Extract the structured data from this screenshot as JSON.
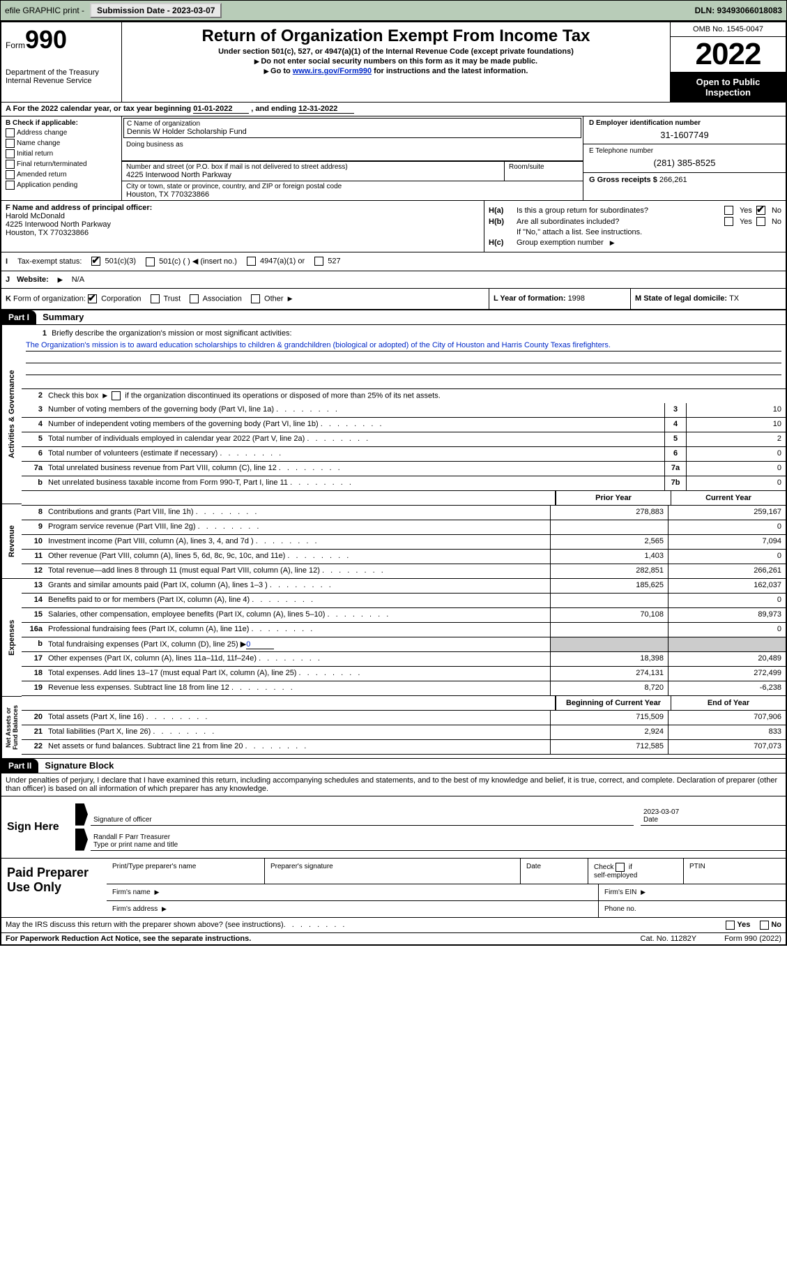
{
  "top_bar": {
    "efile": "efile GRAPHIC print -",
    "sub_btn": "Submission Date - 2023-03-07",
    "dln": "DLN: 93493066018083"
  },
  "header": {
    "form_label": "Form",
    "form_num": "990",
    "dept": "Department of the Treasury",
    "irs": "Internal Revenue Service",
    "title": "Return of Organization Exempt From Income Tax",
    "subtitle": "Under section 501(c), 527, or 4947(a)(1) of the Internal Revenue Code (except private foundations)",
    "note1": "Do not enter social security numbers on this form as it may be made public.",
    "note2_pre": "Go to ",
    "note2_link": "www.irs.gov/Form990",
    "note2_post": " for instructions and the latest information.",
    "omb": "OMB No. 1545-0047",
    "year": "2022",
    "inspection": "Open to Public Inspection"
  },
  "line_a": {
    "text_pre": "A For the 2022 calendar year, or tax year beginning ",
    "begin": "01-01-2022",
    "mid": "  , and ending ",
    "end": "12-31-2022"
  },
  "section_b": {
    "label": "B Check if applicable:",
    "items": [
      "Address change",
      "Name change",
      "Initial return",
      "Final return/terminated",
      "Amended return",
      "Application pending"
    ]
  },
  "section_c": {
    "name_label": "C Name of organization",
    "name": "Dennis W Holder Scholarship Fund",
    "dba_label": "Doing business as",
    "street_label": "Number and street (or P.O. box if mail is not delivered to street address)",
    "room_label": "Room/suite",
    "street": "4225 Interwood North Parkway",
    "city_label": "City or town, state or province, country, and ZIP or foreign postal code",
    "city": "Houston, TX  770323866"
  },
  "section_de": {
    "d_label": "D Employer identification number",
    "d_val": "31-1607749",
    "e_label": "E Telephone number",
    "e_val": "(281) 385-8525",
    "g_label": "G Gross receipts $ ",
    "g_val": "266,261"
  },
  "section_f": {
    "label": "F Name and address of principal officer:",
    "name": "Harold McDonald",
    "addr1": "4225 Interwood North Parkway",
    "addr2": "Houston, TX  770323866"
  },
  "section_h": {
    "ha_label": "H(a)",
    "ha_text": "Is this a group return for subordinates?",
    "ha_no_checked": true,
    "hb_label": "H(b)",
    "hb_text": "Are all subordinates included?",
    "hb_note": "If \"No,\" attach a list. See instructions.",
    "hc_label": "H(c)",
    "hc_text": "Group exemption number"
  },
  "status_row": {
    "i_label": "I",
    "tax_exempt": "Tax-exempt status:",
    "opt1": "501(c)(3)",
    "opt2": "501(c) (  )",
    "opt2_note": "(insert no.)",
    "opt3": "4947(a)(1) or",
    "opt4": "527"
  },
  "website_row": {
    "j_label": "J",
    "label": "Website:",
    "val": "N/A"
  },
  "k_row": {
    "k_label": "K",
    "text": "Form of organization:",
    "opts": [
      "Corporation",
      "Trust",
      "Association",
      "Other"
    ],
    "l_label": "L Year of formation: ",
    "l_val": "1998",
    "m_label": "M State of legal domicile: ",
    "m_val": "TX"
  },
  "part1": {
    "header": "Part I",
    "title": "Summary",
    "vert_labels": [
      "Activities & Governance",
      "Revenue",
      "Expenses",
      "Net Assets or Fund Balances"
    ],
    "line1_label": "1",
    "line1_text": "Briefly describe the organization's mission or most significant activities:",
    "mission": "The Organization's mission is to award education scholarships to children & grandchildren (biological or adopted) of the City of Houston and Harris County Texas firefighters.",
    "line2_label": "2",
    "line2_text": "Check this box",
    "line2_post": "if the organization discontinued its operations or disposed of more than 25% of its net assets.",
    "rows_gov": [
      {
        "n": "3",
        "d": "Number of voting members of the governing body (Part VI, line 1a)",
        "b": "3",
        "v": "10"
      },
      {
        "n": "4",
        "d": "Number of independent voting members of the governing body (Part VI, line 1b)",
        "b": "4",
        "v": "10"
      },
      {
        "n": "5",
        "d": "Total number of individuals employed in calendar year 2022 (Part V, line 2a)",
        "b": "5",
        "v": "2"
      },
      {
        "n": "6",
        "d": "Total number of volunteers (estimate if necessary)",
        "b": "6",
        "v": "0"
      },
      {
        "n": "7a",
        "d": "Total unrelated business revenue from Part VIII, column (C), line 12",
        "b": "7a",
        "v": "0"
      },
      {
        "n": "b",
        "d": "Net unrelated business taxable income from Form 990-T, Part I, line 11",
        "b": "7b",
        "v": "0"
      }
    ],
    "col_prior": "Prior Year",
    "col_current": "Current Year",
    "rows_rev": [
      {
        "n": "8",
        "d": "Contributions and grants (Part VIII, line 1h)",
        "p": "278,883",
        "c": "259,167"
      },
      {
        "n": "9",
        "d": "Program service revenue (Part VIII, line 2g)",
        "p": "",
        "c": "0"
      },
      {
        "n": "10",
        "d": "Investment income (Part VIII, column (A), lines 3, 4, and 7d )",
        "p": "2,565",
        "c": "7,094"
      },
      {
        "n": "11",
        "d": "Other revenue (Part VIII, column (A), lines 5, 6d, 8c, 9c, 10c, and 11e)",
        "p": "1,403",
        "c": "0"
      },
      {
        "n": "12",
        "d": "Total revenue—add lines 8 through 11 (must equal Part VIII, column (A), line 12)",
        "p": "282,851",
        "c": "266,261"
      }
    ],
    "rows_exp": [
      {
        "n": "13",
        "d": "Grants and similar amounts paid (Part IX, column (A), lines 1–3 )",
        "p": "185,625",
        "c": "162,037"
      },
      {
        "n": "14",
        "d": "Benefits paid to or for members (Part IX, column (A), line 4)",
        "p": "",
        "c": "0"
      },
      {
        "n": "15",
        "d": "Salaries, other compensation, employee benefits (Part IX, column (A), lines 5–10)",
        "p": "70,108",
        "c": "89,973"
      },
      {
        "n": "16a",
        "d": "Professional fundraising fees (Part IX, column (A), line 11e)",
        "p": "",
        "c": "0"
      },
      {
        "n": "b",
        "d": "Total fundraising expenses (Part IX, column (D), line 25) ▶",
        "p": "shaded",
        "c": "shaded",
        "fundraising": "0"
      },
      {
        "n": "17",
        "d": "Other expenses (Part IX, column (A), lines 11a–11d, 11f–24e)",
        "p": "18,398",
        "c": "20,489"
      },
      {
        "n": "18",
        "d": "Total expenses. Add lines 13–17 (must equal Part IX, column (A), line 25)",
        "p": "274,131",
        "c": "272,499"
      },
      {
        "n": "19",
        "d": "Revenue less expenses. Subtract line 18 from line 12",
        "p": "8,720",
        "c": "-6,238"
      }
    ],
    "col_begin": "Beginning of Current Year",
    "col_end": "End of Year",
    "rows_net": [
      {
        "n": "20",
        "d": "Total assets (Part X, line 16)",
        "p": "715,509",
        "c": "707,906"
      },
      {
        "n": "21",
        "d": "Total liabilities (Part X, line 26)",
        "p": "2,924",
        "c": "833"
      },
      {
        "n": "22",
        "d": "Net assets or fund balances. Subtract line 21 from line 20",
        "p": "712,585",
        "c": "707,073"
      }
    ]
  },
  "part2": {
    "header": "Part II",
    "title": "Signature Block",
    "intro": "Under penalties of perjury, I declare that I have examined this return, including accompanying schedules and statements, and to the best of my knowledge and belief, it is true, correct, and complete. Declaration of preparer (other than officer) is based on all information of which preparer has any knowledge.",
    "sign_here": "Sign Here",
    "sig_officer": "Signature of officer",
    "sig_date_val": "2023-03-07",
    "sig_date": "Date",
    "sig_name_val": "Randall F Parr Treasurer",
    "sig_name_label": "Type or print name and title",
    "paid_prep": "Paid Preparer Use Only",
    "prep_name": "Print/Type preparer's name",
    "prep_sig": "Preparer's signature",
    "prep_date": "Date",
    "prep_check": "Check",
    "prep_self": "self-employed",
    "prep_if": "if",
    "ptin": "PTIN",
    "firm_name": "Firm's name",
    "firm_ein": "Firm's EIN",
    "firm_addr": "Firm's address",
    "phone": "Phone no."
  },
  "footer": {
    "discuss": "May the IRS discuss this return with the preparer shown above? (see instructions)",
    "yes": "Yes",
    "no": "No",
    "paperwork": "For Paperwork Reduction Act Notice, see the separate instructions.",
    "cat": "Cat. No. 11282Y",
    "form": "Form 990 (2022)"
  }
}
